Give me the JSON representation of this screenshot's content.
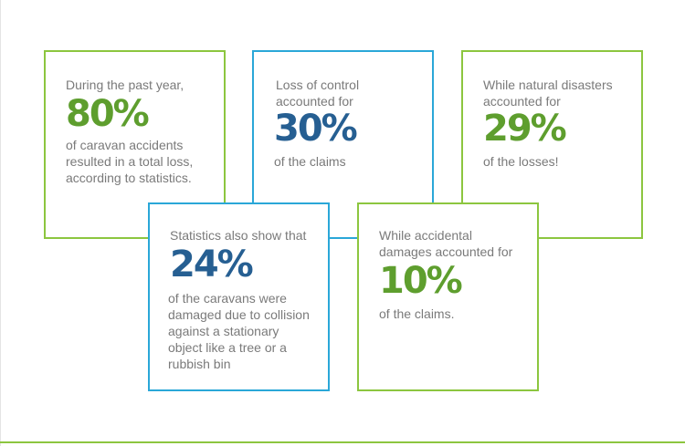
{
  "colors": {
    "green_border": "#8cc63f",
    "blue_border": "#2aa7d8",
    "green_value": "#5e9e2e",
    "blue_value": "#265f92",
    "text_gray": "#7a7a7a"
  },
  "cards": [
    {
      "intro": [
        "During the past year,"
      ],
      "value": "80%",
      "desc": [
        "of caravan accidents",
        "resulted in a total loss,",
        "according to statistics."
      ]
    },
    {
      "intro": [
        "Loss of control",
        "accounted for"
      ],
      "value": "30%",
      "desc": [
        "of the claims"
      ]
    },
    {
      "intro": [
        "While natural disasters",
        "accounted for"
      ],
      "value": "29%",
      "desc": [
        "of the losses!"
      ]
    },
    {
      "intro": [
        "Statistics also show that"
      ],
      "value": "24%",
      "desc": [
        "of the caravans were",
        "damaged due to collision",
        "against a stationary",
        "object like a tree or a",
        "rubbish bin"
      ]
    },
    {
      "intro": [
        "While accidental",
        "damages accounted for"
      ],
      "value": "10%",
      "desc": [
        "of the claims."
      ]
    }
  ]
}
